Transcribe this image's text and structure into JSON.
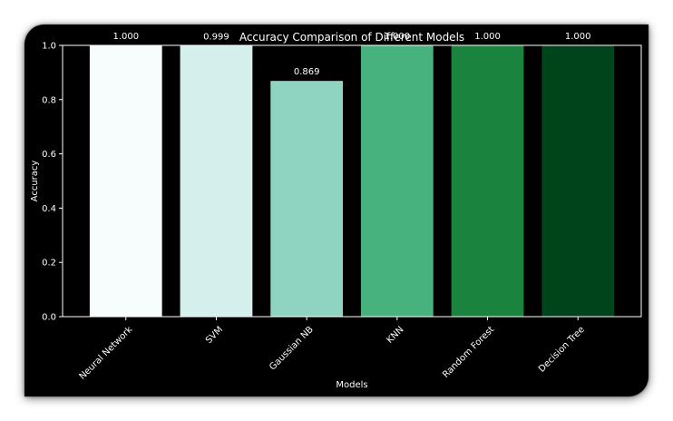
{
  "chart_data": {
    "type": "bar",
    "title": "Accuracy Comparison of Different Models",
    "xlabel": "Models",
    "ylabel": "Accuracy",
    "categories": [
      "Neural Network",
      "SVM",
      "Gaussian NB",
      "KNN",
      "Random Forest",
      "Decision Tree"
    ],
    "values": [
      1.0,
      0.999,
      0.869,
      1.0,
      1.0,
      1.0
    ],
    "value_labels": [
      "1.000",
      "0.999",
      "0.869",
      "1.000",
      "1.000",
      "1.000"
    ],
    "colors": [
      "#f7fcfd",
      "#d5efed",
      "#8fd3c1",
      "#48b27f",
      "#1a843f",
      "#00441b"
    ],
    "ylim": [
      0,
      1.0
    ],
    "yticks": [
      0.0,
      0.2,
      0.4,
      0.6,
      0.8,
      1.0
    ],
    "ytick_labels": [
      "0.0",
      "0.2",
      "0.4",
      "0.6",
      "0.8",
      "1.0"
    ],
    "grid": false,
    "legend": false,
    "background": "#000000",
    "text_color": "#ffffff"
  }
}
